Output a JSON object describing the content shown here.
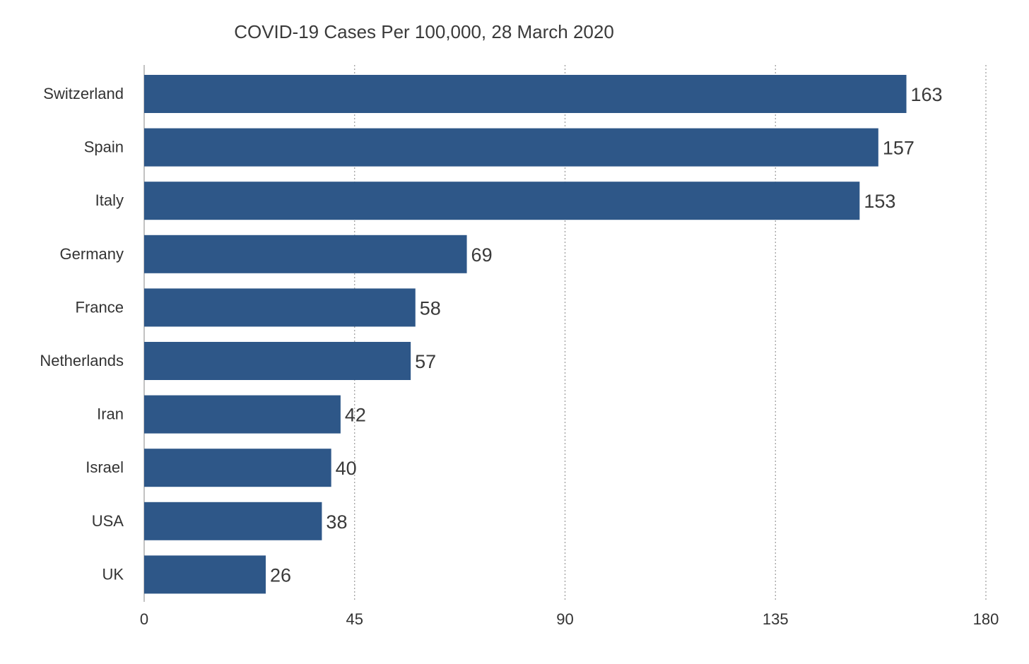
{
  "chart_data": {
    "type": "bar",
    "orientation": "horizontal",
    "title": "COVID-19 Cases Per 100,000, 28 March 2020",
    "categories": [
      "Switzerland",
      "Spain",
      "Italy",
      "Germany",
      "France",
      "Netherlands",
      "Iran",
      "Israel",
      "USA",
      "UK"
    ],
    "values": [
      163,
      157,
      153,
      69,
      58,
      57,
      42,
      40,
      38,
      26
    ],
    "xlabel": "",
    "ylabel": "",
    "xlim": [
      0,
      180
    ],
    "xticks": [
      0,
      45,
      90,
      135,
      180
    ],
    "grid": "vertical dotted",
    "data_labels": true,
    "colors": {
      "bar": "#2e5788",
      "grid": "#9a9a9a",
      "axis": "#999999"
    }
  }
}
